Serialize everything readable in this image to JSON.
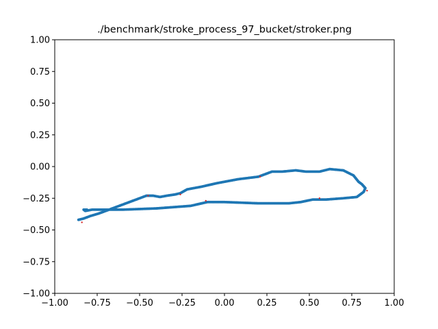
{
  "chart_data": {
    "type": "scatter",
    "title": "./benchmark/stroke_process_97_bucket/stroker.png",
    "xlabel": "",
    "ylabel": "",
    "xlim": [
      -1.0,
      1.0
    ],
    "ylim": [
      -1.0,
      1.0
    ],
    "grid": false,
    "x_ticks": [
      "−1.00",
      "−0.75",
      "−0.50",
      "−0.25",
      "0.00",
      "0.25",
      "0.50",
      "0.75",
      "1.00"
    ],
    "y_ticks": [
      "1.00",
      "0.75",
      "0.50",
      "0.25",
      "0.00",
      "−0.25",
      "−0.50",
      "−0.75",
      "−1.00"
    ],
    "colors": {
      "stroke": "#1f77b4",
      "markers": "#d62728",
      "axes": "#000000"
    },
    "series": [
      {
        "style": "dense-points",
        "x": [
          -0.86,
          -0.83,
          -0.79,
          -0.74,
          -0.68,
          -0.62,
          -0.56,
          -0.5,
          -0.46,
          -0.42,
          -0.38,
          -0.34,
          -0.29,
          -0.26,
          -0.22,
          -0.14,
          -0.04,
          0.08,
          0.2,
          0.24,
          0.28,
          0.34,
          0.42,
          0.48,
          0.56,
          0.62,
          0.7,
          0.76,
          0.79,
          0.81,
          0.83,
          0.82,
          0.78,
          0.7,
          0.6,
          0.52,
          0.45,
          0.38,
          0.3,
          0.2,
          0.1,
          0.0,
          -0.1,
          -0.2,
          -0.3,
          -0.4,
          -0.5,
          -0.6,
          -0.7,
          -0.78,
          -0.82,
          -0.83,
          -0.81
        ],
        "y": [
          -0.42,
          -0.41,
          -0.39,
          -0.37,
          -0.34,
          -0.31,
          -0.28,
          -0.25,
          -0.23,
          -0.23,
          -0.24,
          -0.23,
          -0.22,
          -0.21,
          -0.18,
          -0.16,
          -0.13,
          -0.1,
          -0.08,
          -0.06,
          -0.04,
          -0.04,
          -0.03,
          -0.04,
          -0.04,
          -0.02,
          -0.03,
          -0.07,
          -0.12,
          -0.14,
          -0.17,
          -0.2,
          -0.24,
          -0.25,
          -0.26,
          -0.26,
          -0.28,
          -0.29,
          -0.29,
          -0.29,
          -0.285,
          -0.28,
          -0.28,
          -0.31,
          -0.32,
          -0.33,
          -0.335,
          -0.34,
          -0.34,
          -0.34,
          -0.35,
          -0.34,
          -0.34
        ]
      },
      {
        "style": "markers",
        "x": [
          -0.84,
          -0.45,
          -0.26,
          -0.11,
          0.21,
          0.56,
          0.84
        ],
        "y": [
          -0.44,
          -0.23,
          -0.22,
          -0.27,
          -0.08,
          -0.25,
          -0.19
        ]
      }
    ]
  }
}
